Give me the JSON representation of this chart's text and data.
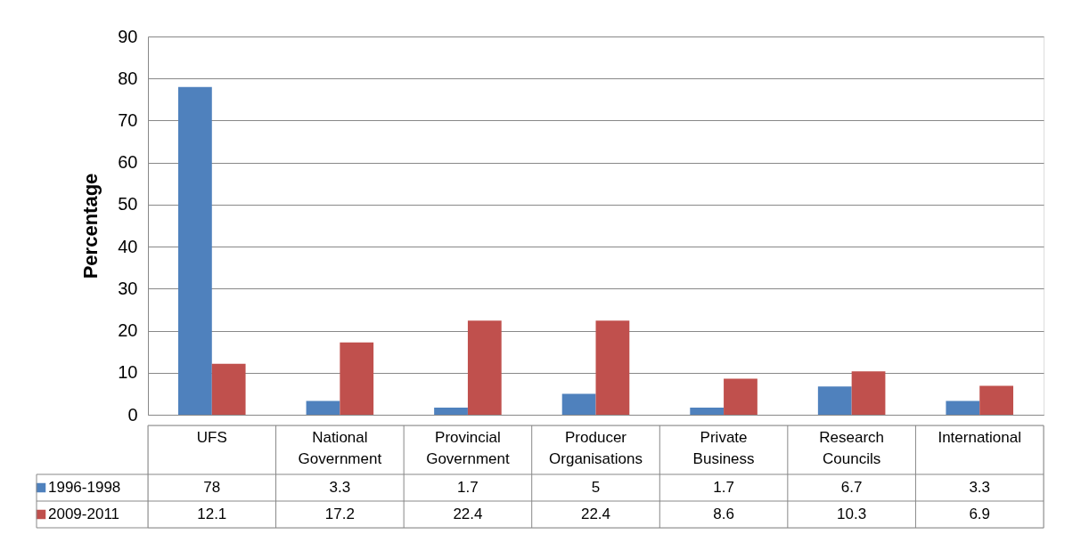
{
  "chart_data": {
    "type": "bar",
    "ylabel": "Percentage",
    "categories": [
      "UFS",
      "National Government",
      "Provincial Government",
      "Producer Organisations",
      "Private Business",
      "Research Councils",
      "International"
    ],
    "series": [
      {
        "name": "1996-1998",
        "color": "#4f81bd",
        "values": [
          78,
          3.3,
          1.7,
          5,
          1.7,
          6.7,
          3.3
        ]
      },
      {
        "name": "2009-2011",
        "color": "#c0504d",
        "values": [
          12.1,
          17.2,
          22.4,
          22.4,
          8.6,
          10.3,
          6.9
        ]
      }
    ],
    "ylim": [
      0,
      90
    ],
    "yticks": [
      0,
      10,
      20,
      30,
      40,
      50,
      60,
      70,
      80,
      90
    ],
    "grid": "y",
    "legend": "bottom",
    "data_labels": true
  }
}
